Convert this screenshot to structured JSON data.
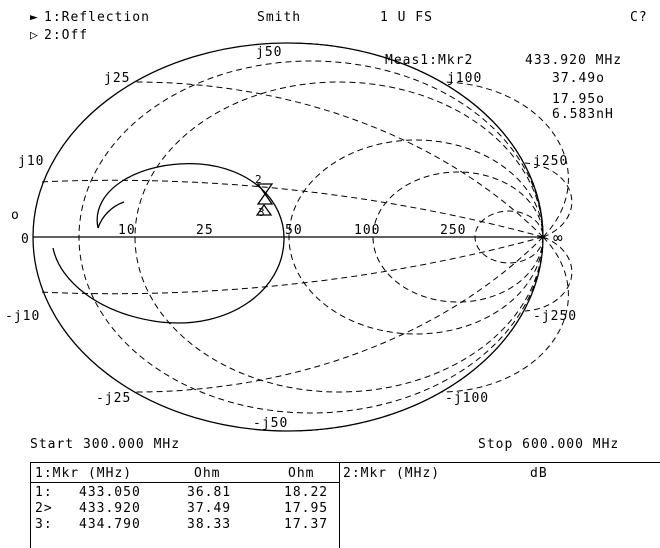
{
  "header": {
    "trace1": "1:Reflection",
    "trace2": "2:Off",
    "format": "Smith",
    "scale": "1 U FS",
    "corner": "C?"
  },
  "marker_readout": {
    "label": "Meas1:Mkr2",
    "frequency": "433.920 MHz",
    "resistance": "37.49o",
    "reactance": "17.95o",
    "inductance": "6.583nH"
  },
  "smith_labels": {
    "j50_top": "j50",
    "j25_top": "j25",
    "j100_top": "j100",
    "j10_top": "j10",
    "j250_top": "j250",
    "o_left": "o",
    "zero": "0",
    "r10": "10",
    "r25": "25",
    "r50": "50",
    "r100": "100",
    "r250": "250",
    "infinity": "∞",
    "nj10": "-j10",
    "nj250": "-j250",
    "nj25": "-j25",
    "nj100": "-j100",
    "nj50": "-j50",
    "marker1": "1",
    "marker2": "2",
    "marker3": "3"
  },
  "sweep": {
    "start": "Start 300.000 MHz",
    "stop": "Stop 600.000 MHz"
  },
  "marker_table": {
    "left_headers": [
      "1:Mkr (MHz)",
      "Ohm",
      "Ohm"
    ],
    "right_headers": [
      "2:Mkr (MHz)",
      "dB"
    ],
    "rows": [
      [
        "1:",
        "433.050",
        "36.81",
        "18.22"
      ],
      [
        "2>",
        "433.920",
        "37.49",
        "17.95"
      ],
      [
        "3:",
        "434.790",
        "38.33",
        "17.37"
      ]
    ]
  }
}
